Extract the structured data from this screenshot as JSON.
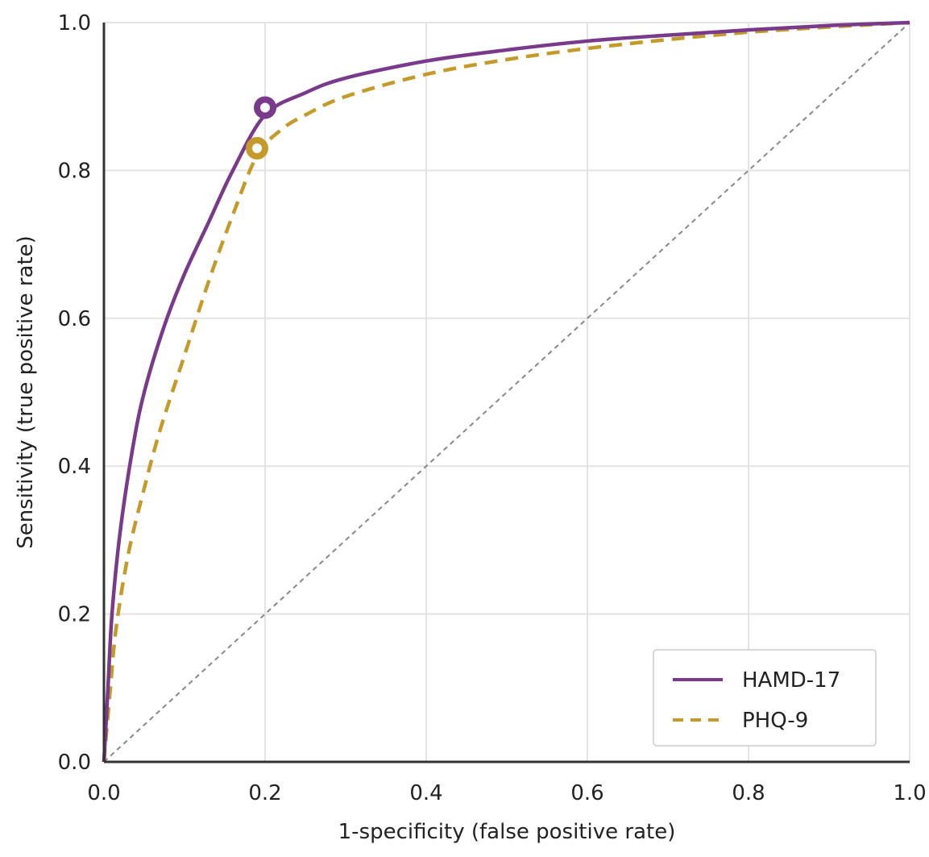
{
  "chart_data": {
    "type": "line",
    "title": "",
    "xlabel": "1-specificity (false positive rate)",
    "ylabel": "Sensitivity (true positive rate)",
    "xlim": [
      0,
      1
    ],
    "ylim": [
      0,
      1
    ],
    "x_ticks": [
      "0.0",
      "0.2",
      "0.4",
      "0.6",
      "0.8",
      "1.0"
    ],
    "y_ticks": [
      "0.0",
      "0.2",
      "0.4",
      "0.6",
      "0.8",
      "1.0"
    ],
    "grid": true,
    "legend_position": "bottom-right",
    "reference_line": {
      "style": "dashed",
      "color": "#888888",
      "points": [
        [
          0,
          0
        ],
        [
          1,
          1
        ]
      ]
    },
    "series": [
      {
        "name": "HAMD-17",
        "style": "solid",
        "color": "#7a3a8c",
        "points": [
          [
            0,
            0
          ],
          [
            0.005,
            0.1
          ],
          [
            0.01,
            0.2
          ],
          [
            0.02,
            0.31
          ],
          [
            0.035,
            0.42
          ],
          [
            0.05,
            0.5
          ],
          [
            0.075,
            0.59
          ],
          [
            0.1,
            0.66
          ],
          [
            0.13,
            0.73
          ],
          [
            0.16,
            0.8
          ],
          [
            0.2,
            0.875
          ],
          [
            0.25,
            0.905
          ],
          [
            0.3,
            0.925
          ],
          [
            0.4,
            0.948
          ],
          [
            0.5,
            0.963
          ],
          [
            0.6,
            0.975
          ],
          [
            0.7,
            0.983
          ],
          [
            0.8,
            0.99
          ],
          [
            0.9,
            0.996
          ],
          [
            1.0,
            1.0
          ]
        ],
        "cutoff_point": [
          0.2,
          0.885
        ]
      },
      {
        "name": "PHQ-9",
        "style": "dashed",
        "color": "#c49a2b",
        "points": [
          [
            0,
            0
          ],
          [
            0.008,
            0.1
          ],
          [
            0.015,
            0.18
          ],
          [
            0.03,
            0.28
          ],
          [
            0.05,
            0.37
          ],
          [
            0.07,
            0.45
          ],
          [
            0.1,
            0.55
          ],
          [
            0.13,
            0.65
          ],
          [
            0.16,
            0.74
          ],
          [
            0.19,
            0.82
          ],
          [
            0.22,
            0.855
          ],
          [
            0.25,
            0.875
          ],
          [
            0.3,
            0.9
          ],
          [
            0.4,
            0.93
          ],
          [
            0.5,
            0.95
          ],
          [
            0.6,
            0.965
          ],
          [
            0.7,
            0.977
          ],
          [
            0.8,
            0.987
          ],
          [
            0.9,
            0.994
          ],
          [
            1.0,
            1.0
          ]
        ],
        "cutoff_point": [
          0.19,
          0.83
        ]
      }
    ]
  }
}
